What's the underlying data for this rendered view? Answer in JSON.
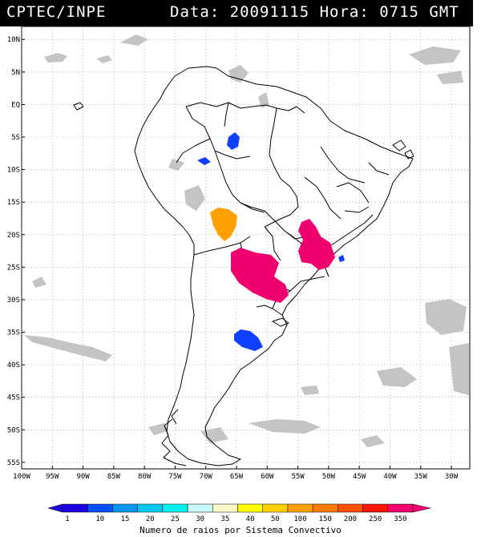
{
  "header": {
    "source": "CPTEC/INPE",
    "datetime": "Data: 20091115 Hora: 0715 GMT"
  },
  "map": {
    "lat_labels": [
      "10N",
      "5N",
      "EQ",
      "5S",
      "10S",
      "15S",
      "20S",
      "25S",
      "30S",
      "35S",
      "40S",
      "45S",
      "50S",
      "55S"
    ],
    "lon_labels": [
      "100W",
      "95W",
      "90W",
      "85W",
      "80W",
      "75W",
      "70W",
      "65W",
      "60W",
      "55W",
      "50W",
      "45W",
      "40W",
      "35W",
      "30W"
    ],
    "lon_values": [
      -100,
      -95,
      -90,
      -85,
      -80,
      -75,
      -70,
      -65,
      -60,
      -55,
      -50,
      -45,
      -40,
      -35,
      -30
    ],
    "lat_values": [
      10,
      5,
      0,
      -5,
      -10,
      -15,
      -20,
      -25,
      -30,
      -35,
      -40,
      -45,
      -50,
      -55
    ],
    "extent": {
      "lon_min": -100,
      "lon_max": -27,
      "lat_min": -56,
      "lat_max": 12
    },
    "colors": {
      "cloud": "#c4c4c4",
      "blue": "#1040ff",
      "orange": "#ffa000",
      "magenta": "#f0006e"
    }
  },
  "legend": {
    "ticks": [
      "1",
      "10",
      "15",
      "20",
      "25",
      "30",
      "35",
      "40",
      "50",
      "100",
      "150",
      "200",
      "250",
      "350"
    ],
    "colors": [
      "#1c00e0",
      "#0050ff",
      "#0096f0",
      "#00c8f0",
      "#00f0f0",
      "#c8f8f8",
      "#fff8c8",
      "#ffff00",
      "#ffd000",
      "#ffa000",
      "#ff7a00",
      "#ff5000",
      "#ff1400",
      "#f5006e"
    ],
    "title": "Numero de raios por Sistema Convectivo"
  }
}
